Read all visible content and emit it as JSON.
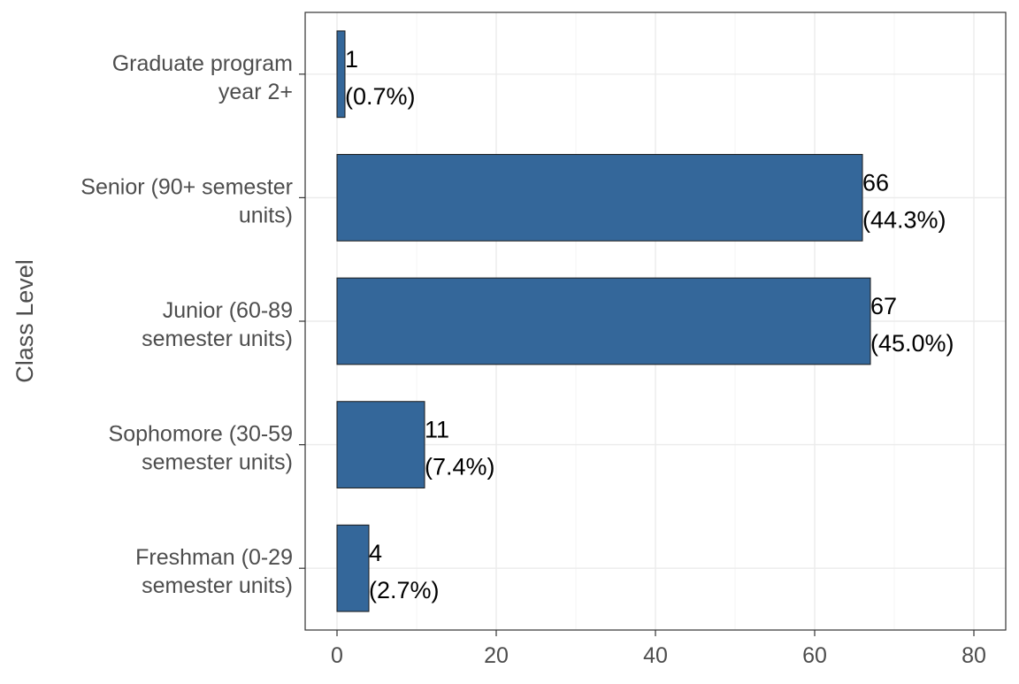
{
  "chart_data": {
    "type": "bar",
    "orientation": "horizontal",
    "ylabel": "Class Level",
    "xlabel": "",
    "xlim": [
      -4,
      84
    ],
    "xticks": [
      0,
      20,
      40,
      60,
      80
    ],
    "grid": true,
    "bar_color": "#34679A",
    "categories": [
      "Graduate program year 2+",
      "Senior (90+ semester units)",
      "Junior (60-89 semester units)",
      "Sophomore (30-59 semester units)",
      "Freshman (0-29 semester units)"
    ],
    "category_label_lines": [
      [
        "Graduate program",
        "year 2+"
      ],
      [
        "Senior (90+ semester",
        "units)"
      ],
      [
        "Junior (60-89",
        "semester units)"
      ],
      [
        "Sophomore (30-59",
        "semester units)"
      ],
      [
        "Freshman (0-29",
        "semester units)"
      ]
    ],
    "values": [
      1,
      66,
      67,
      11,
      4
    ],
    "percent_labels": [
      "(0.7%)",
      "(44.3%)",
      "(45.0%)",
      "(7.4%)",
      "(2.7%)"
    ]
  }
}
